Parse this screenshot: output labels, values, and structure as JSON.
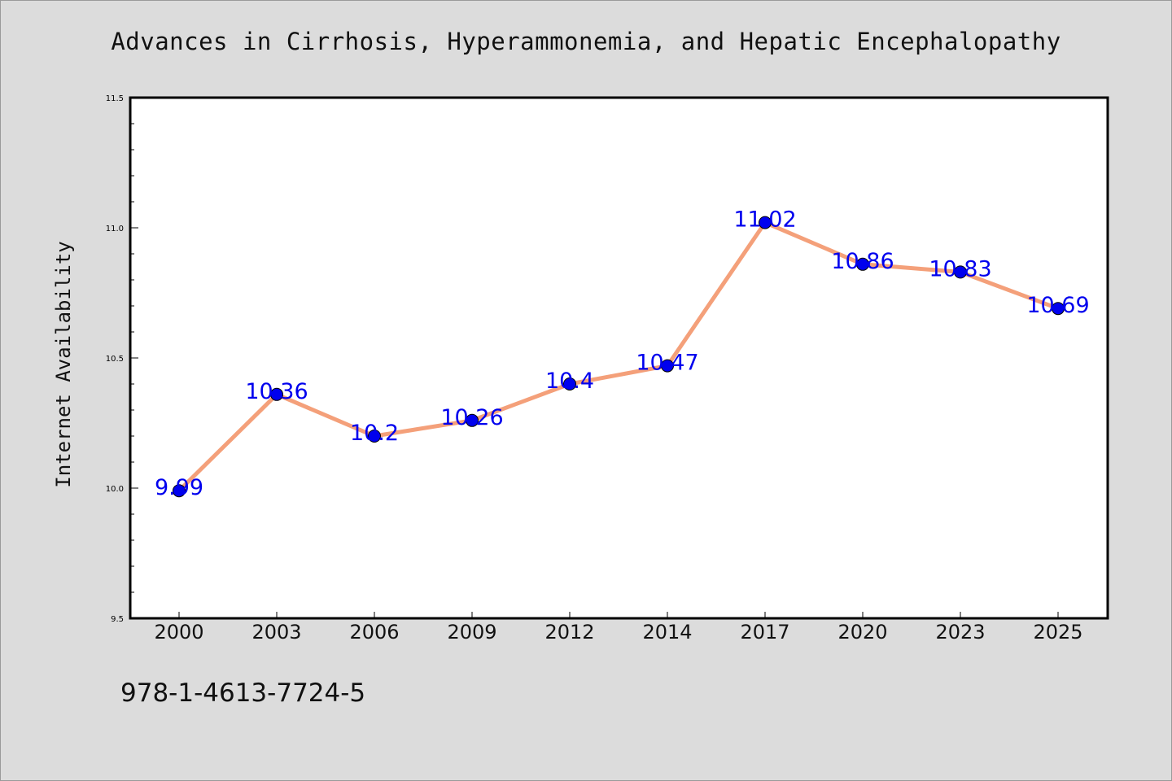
{
  "chart_data": {
    "type": "line",
    "title": "Advances in Cirrhosis, Hyperammonemia, and Hepatic Encephalopathy",
    "xlabel": "",
    "ylabel": "Internet Availability",
    "categories": [
      "2000",
      "2003",
      "2006",
      "2009",
      "2012",
      "2014",
      "2017",
      "2020",
      "2023",
      "2025"
    ],
    "values": [
      9.99,
      10.36,
      10.2,
      10.26,
      10.4,
      10.47,
      11.02,
      10.86,
      10.83,
      10.69
    ],
    "data_labels": [
      "9.99",
      "10.36",
      "10.2",
      "10.26",
      "10.4",
      "10.47",
      "11.02",
      "10.86",
      "10.83",
      "10.69"
    ],
    "ylim": [
      9.5,
      11.5
    ],
    "y_ticks": [
      "9.5",
      "10.0",
      "10.5",
      "11.0",
      "11.5"
    ],
    "grid": false,
    "legend": "none",
    "colors": {
      "line": "#f4a07a",
      "marker": "#0000ee",
      "data_label": "#0000ee",
      "background": "#dcdcdc",
      "plot_background": "#ffffff"
    }
  },
  "footer": {
    "code": "978-1-4613-7724-5"
  }
}
